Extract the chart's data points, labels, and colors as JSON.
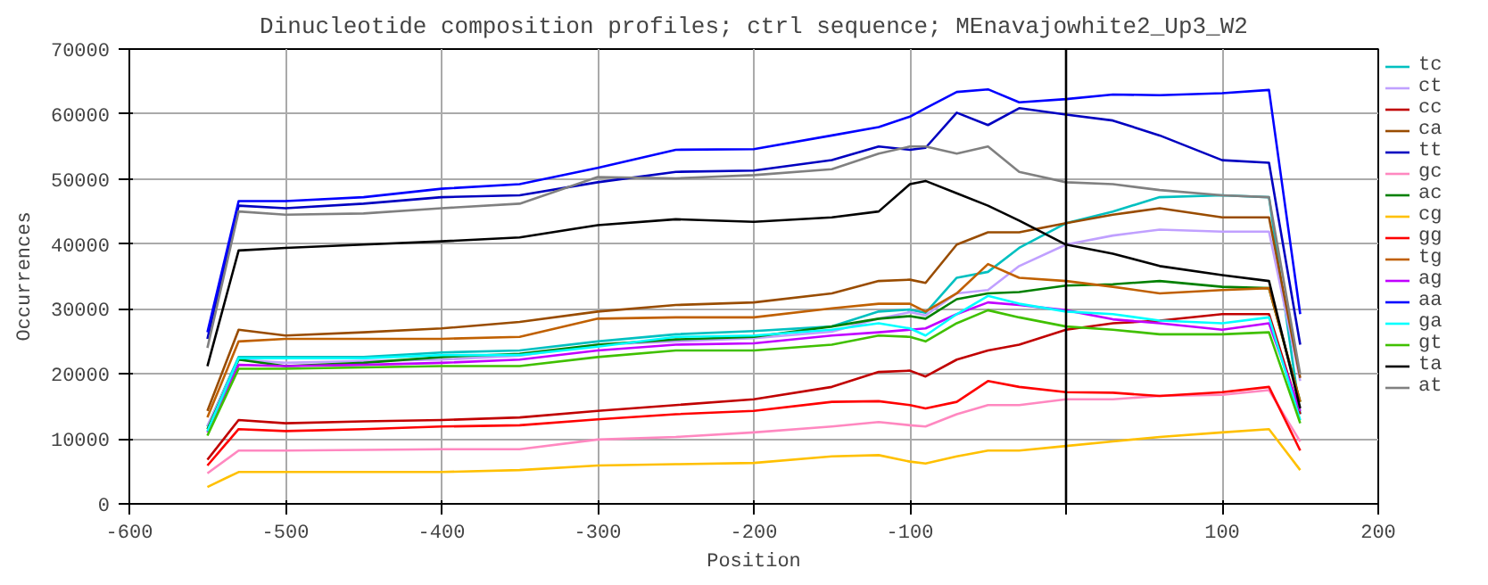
{
  "chart_data": {
    "type": "line",
    "title": "Dinucleotide composition profiles; ctrl sequence; MEnavajowhite2_Up3_W2",
    "xlabel": "Position",
    "ylabel": "Occurrences",
    "x": [
      -550,
      -530,
      -500,
      -450,
      -400,
      -350,
      -300,
      -250,
      -200,
      -150,
      -120,
      -100,
      -90,
      -70,
      -50,
      -30,
      0,
      30,
      60,
      100,
      130,
      150
    ],
    "xlim": [
      -600,
      200
    ],
    "xticks": [
      -600,
      -500,
      -400,
      -300,
      -200,
      -100,
      {
        "value": 0,
        "label": null
      },
      100,
      200
    ],
    "ylim": [
      0,
      70000
    ],
    "yticks": [
      0,
      10000,
      20000,
      30000,
      40000,
      50000,
      60000,
      70000
    ],
    "grid": true,
    "legend": "right",
    "marker": "none",
    "line_style": "solid",
    "ref_lines": [
      {
        "axis": "x",
        "value": 0,
        "color": "#000000"
      }
    ],
    "series": [
      {
        "name": "tc",
        "color": "#00c0c0",
        "values": [
          11900,
          22600,
          22600,
          22600,
          23300,
          23600,
          25000,
          26100,
          26600,
          27300,
          29600,
          29900,
          29400,
          34800,
          35700,
          39400,
          43200,
          45000,
          47200,
          47500,
          47200,
          13800
        ]
      },
      {
        "name": "ct",
        "color": "#c0a0ff",
        "values": [
          12000,
          22200,
          21700,
          22000,
          22200,
          22800,
          24500,
          25000,
          25500,
          26500,
          28500,
          29500,
          29000,
          32400,
          32900,
          36600,
          39900,
          41300,
          42200,
          41900,
          41900,
          18900
        ]
      },
      {
        "name": "cc",
        "color": "#c00000",
        "values": [
          6800,
          12900,
          12400,
          12700,
          12900,
          13300,
          14300,
          15200,
          16100,
          18000,
          20300,
          20500,
          19600,
          22200,
          23600,
          24500,
          26800,
          27800,
          28200,
          29200,
          29200,
          13800
        ]
      },
      {
        "name": "ca",
        "color": "#994c00",
        "values": [
          14300,
          26800,
          25900,
          26400,
          27000,
          28000,
          29600,
          30600,
          31000,
          32400,
          34300,
          34500,
          34000,
          39900,
          41800,
          41800,
          43200,
          44500,
          45500,
          44100,
          44100,
          19400
        ]
      },
      {
        "name": "tt",
        "color": "#0000c0",
        "values": [
          25400,
          45900,
          45500,
          46200,
          47200,
          47500,
          49500,
          51100,
          51300,
          52900,
          55000,
          54500,
          54800,
          60200,
          58300,
          60900,
          59900,
          59000,
          56700,
          52900,
          52500,
          24500
        ]
      },
      {
        "name": "gc",
        "color": "#ff88c0",
        "values": [
          4700,
          8200,
          8200,
          8300,
          8400,
          8400,
          9900,
          10300,
          11000,
          11900,
          12600,
          12100,
          11900,
          13800,
          15200,
          15200,
          16100,
          16100,
          16600,
          16800,
          17500,
          9600
        ]
      },
      {
        "name": "ac",
        "color": "#008000",
        "values": [
          11500,
          22200,
          21200,
          21700,
          22600,
          23100,
          24500,
          25300,
          25700,
          27300,
          28500,
          28900,
          28500,
          31500,
          32400,
          32600,
          33600,
          33800,
          34300,
          33400,
          33200,
          15700
        ]
      },
      {
        "name": "cg",
        "color": "#ffc000",
        "values": [
          2600,
          4900,
          4900,
          4900,
          4900,
          5200,
          5900,
          6100,
          6300,
          7300,
          7500,
          6500,
          6200,
          7300,
          8200,
          8200,
          8900,
          9600,
          10300,
          11000,
          11500,
          5200
        ]
      },
      {
        "name": "gg",
        "color": "#ff0000",
        "values": [
          5900,
          11500,
          11200,
          11500,
          11900,
          12100,
          13000,
          13800,
          14300,
          15700,
          15800,
          15200,
          14700,
          15700,
          18900,
          18000,
          17200,
          17100,
          16600,
          17200,
          18000,
          8200
        ]
      },
      {
        "name": "tg",
        "color": "#c06000",
        "values": [
          13300,
          25000,
          25400,
          25400,
          25400,
          25700,
          28500,
          28700,
          28700,
          30100,
          30800,
          30800,
          29600,
          32400,
          36900,
          34800,
          34300,
          33400,
          32400,
          32900,
          33200,
          15700
        ]
      },
      {
        "name": "ag",
        "color": "#c000ff",
        "values": [
          11000,
          21400,
          21200,
          21400,
          21700,
          22200,
          23600,
          24500,
          24700,
          25900,
          26400,
          26800,
          27000,
          29200,
          31000,
          30600,
          29800,
          28400,
          27800,
          26800,
          27800,
          14300
        ]
      },
      {
        "name": "aa",
        "color": "#0000ff",
        "values": [
          26400,
          46600,
          46600,
          47200,
          48500,
          49200,
          51700,
          54500,
          54600,
          56700,
          58000,
          59600,
          60900,
          63400,
          63800,
          61800,
          62300,
          63000,
          62900,
          63200,
          63700,
          29200
        ]
      },
      {
        "name": "ga",
        "color": "#00ffff",
        "values": [
          11200,
          22400,
          22400,
          22400,
          22900,
          22900,
          24200,
          25700,
          25900,
          26800,
          27800,
          27000,
          25900,
          29200,
          32000,
          30800,
          29600,
          29200,
          28200,
          27800,
          28700,
          12900
        ]
      },
      {
        "name": "gt",
        "color": "#40c000",
        "values": [
          10500,
          20800,
          20800,
          21000,
          21200,
          21200,
          22600,
          23600,
          23600,
          24500,
          25900,
          25700,
          25000,
          27800,
          29800,
          28700,
          27300,
          26800,
          26100,
          26100,
          26400,
          12400
        ]
      },
      {
        "name": "ta",
        "color": "#000000",
        "values": [
          21200,
          39000,
          39400,
          39900,
          40400,
          41000,
          42900,
          43800,
          43400,
          44100,
          45000,
          49200,
          49700,
          47800,
          45900,
          43600,
          39900,
          38500,
          36600,
          35200,
          34300,
          14700
        ]
      },
      {
        "name": "at",
        "color": "#808080",
        "values": [
          24000,
          45000,
          44500,
          44700,
          45500,
          46200,
          50300,
          50100,
          50600,
          51500,
          53900,
          55000,
          55000,
          53900,
          55000,
          51100,
          49500,
          49200,
          48300,
          47500,
          47200,
          19900
        ]
      }
    ]
  }
}
